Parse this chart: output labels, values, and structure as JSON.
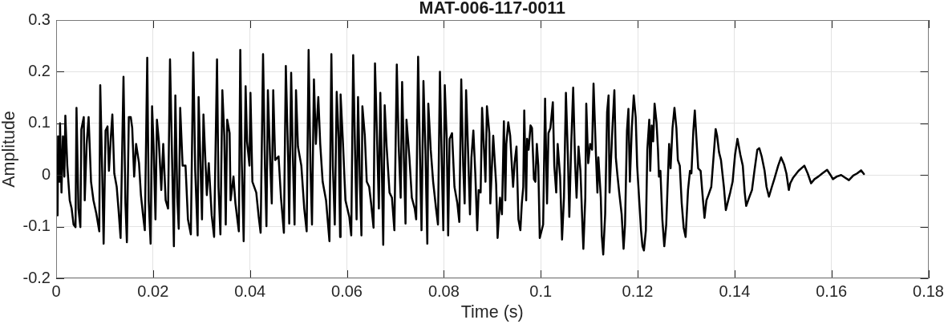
{
  "chart_data": {
    "type": "line",
    "title": "MAT-006-117-0011",
    "xlabel": "Time (s)",
    "ylabel": "Amplitude",
    "xlim": [
      0,
      0.18
    ],
    "xticks": [
      0,
      0.02,
      0.04,
      0.06,
      0.08,
      0.1,
      0.12,
      0.14,
      0.16,
      0.18
    ],
    "ylim": [
      -0.2,
      0.3
    ],
    "yticks": [
      -0.2,
      -0.1,
      0,
      0.1,
      0.2,
      0.3
    ],
    "grid": true,
    "x": [
      0.0003,
      0.0004,
      0.0007,
      0.0008,
      0.0011,
      0.0014,
      0.0017,
      0.0019,
      0.0023,
      0.0028,
      0.0032,
      0.0036,
      0.004,
      0.0042,
      0.0046,
      0.005,
      0.0052,
      0.0057,
      0.0059,
      0.0063,
      0.0067,
      0.0072,
      0.0077,
      0.0083,
      0.0089,
      0.0091,
      0.0095,
      0.0098,
      0.0102,
      0.0106,
      0.0109,
      0.0113,
      0.0116,
      0.012,
      0.0125,
      0.0129,
      0.0133,
      0.0139,
      0.0143,
      0.0146,
      0.015,
      0.0154,
      0.0157,
      0.0161,
      0.0165,
      0.0171,
      0.0175,
      0.0179,
      0.0183,
      0.0188,
      0.0191,
      0.0195,
      0.0198,
      0.0201,
      0.0205,
      0.0208,
      0.0212,
      0.0217,
      0.0221,
      0.0226,
      0.0231,
      0.0235,
      0.0243,
      0.0246,
      0.025,
      0.0253,
      0.0256,
      0.0261,
      0.0267,
      0.0272,
      0.0278,
      0.0283,
      0.0287,
      0.0292,
      0.0294,
      0.0301,
      0.0304,
      0.0311,
      0.0315,
      0.0321,
      0.0326,
      0.0332,
      0.0335,
      0.0339,
      0.0343,
      0.0347,
      0.035,
      0.0353,
      0.0358,
      0.036,
      0.0366,
      0.037,
      0.0374,
      0.0377,
      0.038,
      0.0383,
      0.0387,
      0.0391,
      0.0394,
      0.0399,
      0.0401,
      0.0405,
      0.0413,
      0.0418,
      0.0422,
      0.0427,
      0.0431,
      0.0434,
      0.0437,
      0.0442,
      0.0445,
      0.0448,
      0.0452,
      0.0459,
      0.0464,
      0.047,
      0.0474,
      0.0479,
      0.0481,
      0.0485,
      0.0488,
      0.0492,
      0.0495,
      0.0499,
      0.0506,
      0.0512,
      0.0517,
      0.0521,
      0.0525,
      0.0528,
      0.0532,
      0.0536,
      0.0541,
      0.0545,
      0.055,
      0.0557,
      0.0564,
      0.0568,
      0.0571,
      0.0575,
      0.0579,
      0.0583,
      0.0586,
      0.0587,
      0.0592,
      0.0597,
      0.0605,
      0.0609,
      0.0613,
      0.0617,
      0.062,
      0.0623,
      0.0627,
      0.063,
      0.0632,
      0.0637,
      0.0641,
      0.0646,
      0.065,
      0.0655,
      0.0658,
      0.0663,
      0.0666,
      0.0669,
      0.0672,
      0.0675,
      0.0678,
      0.0682,
      0.0688,
      0.0693,
      0.0698,
      0.0703,
      0.0707,
      0.0711,
      0.0714,
      0.0718,
      0.0721,
      0.0723,
      0.0729,
      0.0734,
      0.074,
      0.0743,
      0.0747,
      0.0751,
      0.0754,
      0.0758,
      0.0762,
      0.0766,
      0.0768,
      0.0773,
      0.0778,
      0.0784,
      0.0788,
      0.0792,
      0.0796,
      0.0799,
      0.0802,
      0.0806,
      0.0809,
      0.0812,
      0.0817,
      0.0822,
      0.0828,
      0.0832,
      0.0836,
      0.084,
      0.0843,
      0.0846,
      0.085,
      0.0854,
      0.0857,
      0.0861,
      0.0865,
      0.0869,
      0.0872,
      0.0876,
      0.0879,
      0.0883,
      0.0886,
      0.0889,
      0.0894,
      0.0896,
      0.0902,
      0.0908,
      0.0911,
      0.0916,
      0.092,
      0.0924,
      0.0927,
      0.0929,
      0.0933,
      0.0937,
      0.0941,
      0.0943,
      0.0946,
      0.095,
      0.0954,
      0.0958,
      0.0961,
      0.0964,
      0.0966,
      0.097,
      0.0972,
      0.0975,
      0.0979,
      0.0982,
      0.0986,
      0.0989,
      0.0992,
      0.0995,
      0.0998,
      0.1005,
      0.1009,
      0.1013,
      0.1016,
      0.102,
      0.1025,
      0.1028,
      0.1032,
      0.1035,
      0.104,
      0.1044,
      0.1048,
      0.1052,
      0.1056,
      0.1059,
      0.1063,
      0.1067,
      0.1071,
      0.1074,
      0.1078,
      0.1082,
      0.1086,
      0.1088,
      0.1092,
      0.1094,
      0.1098,
      0.1102,
      0.1106,
      0.1109,
      0.1114,
      0.1117,
      0.1119,
      0.1124,
      0.1126,
      0.1129,
      0.1133,
      0.1137,
      0.114,
      0.1142,
      0.1148,
      0.1152,
      0.1155,
      0.1158,
      0.1162,
      0.1167,
      0.1171,
      0.1174,
      0.1178,
      0.1181,
      0.1184,
      0.1188,
      0.1192,
      0.1196,
      0.1199,
      0.1202,
      0.1207,
      0.121,
      0.1213,
      0.1217,
      0.122,
      0.1224,
      0.1226,
      0.1229,
      0.1232,
      0.1235,
      0.1239,
      0.1242,
      0.1244,
      0.1247,
      0.1251,
      0.1255,
      0.1259,
      0.1265,
      0.1268,
      0.1272,
      0.1276,
      0.128,
      0.1283,
      0.1287,
      0.1291,
      0.1295,
      0.1299,
      0.1304,
      0.1308,
      0.1311,
      0.1315,
      0.1318,
      0.1321,
      0.1325,
      0.133,
      0.1334,
      0.1338,
      0.1342,
      0.1346,
      0.1352,
      0.1357,
      0.1361,
      0.1364,
      0.1368,
      0.1372,
      0.1378,
      0.1382,
      0.1387,
      0.1391,
      0.1396,
      0.1401,
      0.1406,
      0.1412,
      0.1417,
      0.1421,
      0.1424,
      0.143,
      0.1436,
      0.1441,
      0.1447,
      0.1451,
      0.1456,
      0.1462,
      0.1466,
      0.1471,
      0.1477,
      0.1482,
      0.149,
      0.1496,
      0.1502,
      0.1507,
      0.1512,
      0.1515,
      0.1521,
      0.1532,
      0.1544,
      0.1551,
      0.1558,
      0.1565,
      0.1573,
      0.1581,
      0.1591,
      0.1598,
      0.1603,
      0.1611,
      0.162,
      0.1628,
      0.1636,
      0.1645,
      0.1653,
      0.1661,
      0.1667
    ],
    "series": [
      {
        "color": "#000000",
        "values": [
          -0.078,
          0.075,
          -0.013,
          0.1,
          -0.034,
          0.075,
          -0.003,
          0.115,
          0.018,
          -0.049,
          -0.065,
          -0.096,
          -0.101,
          0.13,
          -0.065,
          -0.101,
          0.088,
          0.112,
          -0.049,
          0.06,
          0.112,
          -0.013,
          -0.049,
          -0.075,
          -0.109,
          0.174,
          0.008,
          -0.133,
          0.086,
          0.094,
          0.008,
          0.075,
          0.117,
          0.003,
          -0.023,
          -0.07,
          -0.122,
          0.19,
          -0.055,
          -0.13,
          0.112,
          0.112,
          0.091,
          -0.003,
          0.06,
          0.023,
          -0.039,
          -0.075,
          -0.107,
          0.227,
          -0.049,
          -0.133,
          0.133,
          0.06,
          -0.086,
          0.107,
          0.065,
          -0.029,
          0.06,
          -0.049,
          -0.065,
          0.224,
          -0.138,
          0.154,
          -0.044,
          -0.104,
          0.13,
          0.018,
          0.018,
          -0.086,
          -0.115,
          0.237,
          0.008,
          -0.117,
          0.151,
          -0.086,
          0.117,
          -0.039,
          0.023,
          -0.078,
          -0.12,
          0.224,
          -0.023,
          -0.115,
          0.164,
          0.076,
          -0.096,
          0.107,
          0.081,
          -0.049,
          -0.003,
          -0.055,
          -0.086,
          -0.109,
          0.242,
          0.029,
          -0.128,
          0.172,
          0.065,
          0.018,
          0.159,
          -0.013,
          -0.034,
          -0.081,
          -0.112,
          0.234,
          0.013,
          -0.099,
          0.164,
          0.018,
          -0.055,
          0.164,
          0.029,
          0.036,
          -0.044,
          -0.112,
          0.211,
          0.023,
          -0.094,
          0.198,
          0.055,
          -0.096,
          0.164,
          0.055,
          0.018,
          -0.065,
          -0.109,
          0.242,
          0.008,
          -0.096,
          0.185,
          0.06,
          0.151,
          0.06,
          -0.013,
          -0.049,
          -0.128,
          0.234,
          0.018,
          -0.096,
          0.161,
          0.07,
          -0.12,
          0.156,
          0.06,
          -0.049,
          -0.081,
          -0.117,
          0.232,
          0.039,
          -0.086,
          0.151,
          -0.018,
          -0.117,
          0.133,
          0.076,
          -0.013,
          -0.023,
          -0.055,
          -0.102,
          0.216,
          0.044,
          -0.065,
          0.159,
          0.018,
          -0.135,
          0.135,
          0.055,
          -0.034,
          -0.044,
          -0.107,
          0.214,
          0.055,
          -0.044,
          0.18,
          0.018,
          -0.094,
          0.107,
          0.034,
          -0.044,
          -0.065,
          -0.086,
          0.229,
          0.029,
          -0.107,
          0.182,
          0.049,
          -0.133,
          0.138,
          0.049,
          -0.013,
          -0.065,
          -0.096,
          0.2,
          0.018,
          -0.107,
          0.174,
          0.07,
          -0.117,
          0.07,
          0.081,
          -0.023,
          -0.055,
          -0.091,
          0.185,
          0.018,
          -0.055,
          0.164,
          0.049,
          -0.076,
          0.034,
          0.086,
          0.003,
          -0.107,
          -0.029,
          -0.034,
          0.13,
          0.049,
          -0.013,
          0.133,
          0.081,
          -0.055,
          0.076,
          -0.018,
          -0.122,
          -0.044,
          -0.076,
          0.104,
          -0.049,
          0.06,
          0.102,
          0.076,
          0.008,
          -0.023,
          0.023,
          0.055,
          -0.086,
          -0.107,
          -0.055,
          -0.023,
          0.125,
          -0.049,
          0.07,
          0.049,
          0.096,
          0.091,
          -0.008,
          -0.013,
          0.06,
          0.018,
          -0.122,
          -0.096,
          0.148,
          -0.055,
          0.081,
          0.091,
          0.141,
          0.018,
          -0.034,
          0.06,
          -0.003,
          -0.125,
          -0.044,
          0.159,
          0.039,
          -0.081,
          0.06,
          0.169,
          0.023,
          -0.044,
          0.055,
          0.008,
          -0.096,
          -0.143,
          -0.044,
          0.138,
          0.023,
          0.06,
          0.049,
          0.177,
          0.039,
          -0.034,
          0.034,
          -0.044,
          -0.117,
          -0.154,
          -0.076,
          0.122,
          0.154,
          -0.034,
          0.091,
          0.164,
          0.034,
          0.003,
          -0.034,
          -0.076,
          -0.143,
          -0.096,
          0.086,
          0.128,
          -0.013,
          0.091,
          0.154,
          0.112,
          0.018,
          -0.029,
          -0.107,
          -0.138,
          -0.146,
          -0.107,
          0.049,
          0.107,
          0.008,
          0.096,
          0.065,
          0.138,
          0.102,
          0.049,
          -0.003,
          0.008,
          -0.086,
          -0.138,
          -0.096,
          0.06,
          0.013,
          0.091,
          0.13,
          0.091,
          0.029,
          0.018,
          -0.055,
          -0.102,
          -0.12,
          -0.029,
          0.008,
          0.003,
          0.086,
          0.125,
          0.076,
          0.013,
          0.008,
          -0.039,
          -0.083,
          -0.049,
          -0.039,
          -0.023,
          0.039,
          0.089,
          0.076,
          0.044,
          0.029,
          -0.023,
          -0.068,
          -0.049,
          -0.034,
          -0.013,
          0.039,
          0.07,
          0.039,
          0.018,
          -0.034,
          -0.06,
          -0.044,
          -0.029,
          0.008,
          0.049,
          0.052,
          0.036,
          0.008,
          -0.023,
          -0.042,
          -0.023,
          -0.008,
          0.018,
          0.034,
          0.021,
          0.003,
          -0.029,
          -0.016,
          -0.005,
          0.008,
          0.018,
          0.003,
          -0.016,
          -0.008,
          -0.003,
          0.003,
          0.01,
          0.0,
          -0.008,
          -0.003,
          0.0,
          -0.005,
          -0.01,
          -0.001,
          0.003,
          0.009,
          0.002
        ]
      }
    ]
  }
}
